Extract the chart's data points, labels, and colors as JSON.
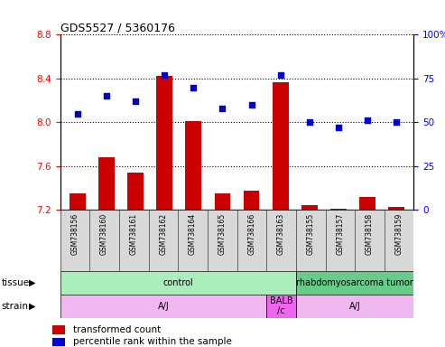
{
  "title": "GDS5527 / 5360176",
  "samples": [
    "GSM738156",
    "GSM738160",
    "GSM738161",
    "GSM738162",
    "GSM738164",
    "GSM738165",
    "GSM738166",
    "GSM738163",
    "GSM738155",
    "GSM738157",
    "GSM738158",
    "GSM738159"
  ],
  "bar_values": [
    7.35,
    7.68,
    7.54,
    8.42,
    8.01,
    7.35,
    7.38,
    8.37,
    7.24,
    7.21,
    7.32,
    7.23
  ],
  "dot_values": [
    55,
    65,
    62,
    77,
    70,
    58,
    60,
    77,
    50,
    47,
    51,
    50
  ],
  "bar_color": "#cc0000",
  "dot_color": "#0000cc",
  "ylim_left": [
    7.2,
    8.8
  ],
  "ylim_right": [
    0,
    100
  ],
  "yticks_left": [
    7.2,
    7.6,
    8.0,
    8.4,
    8.8
  ],
  "yticks_right": [
    0,
    25,
    50,
    75,
    100
  ],
  "tissue_labels": [
    {
      "label": "control",
      "start": 0,
      "end": 8,
      "color": "#aaeebb"
    },
    {
      "label": "rhabdomyosarcoma tumor",
      "start": 8,
      "end": 12,
      "color": "#66cc88"
    }
  ],
  "strain_labels": [
    {
      "label": "A/J",
      "start": 0,
      "end": 7,
      "color": "#f0b8f0"
    },
    {
      "label": "BALB\n/c",
      "start": 7,
      "end": 8,
      "color": "#ee66ee"
    },
    {
      "label": "A/J",
      "start": 8,
      "end": 12,
      "color": "#f0b8f0"
    }
  ],
  "hgrid_color": "black",
  "hgrid_style": "dotted",
  "bar_bottom": 7.2
}
